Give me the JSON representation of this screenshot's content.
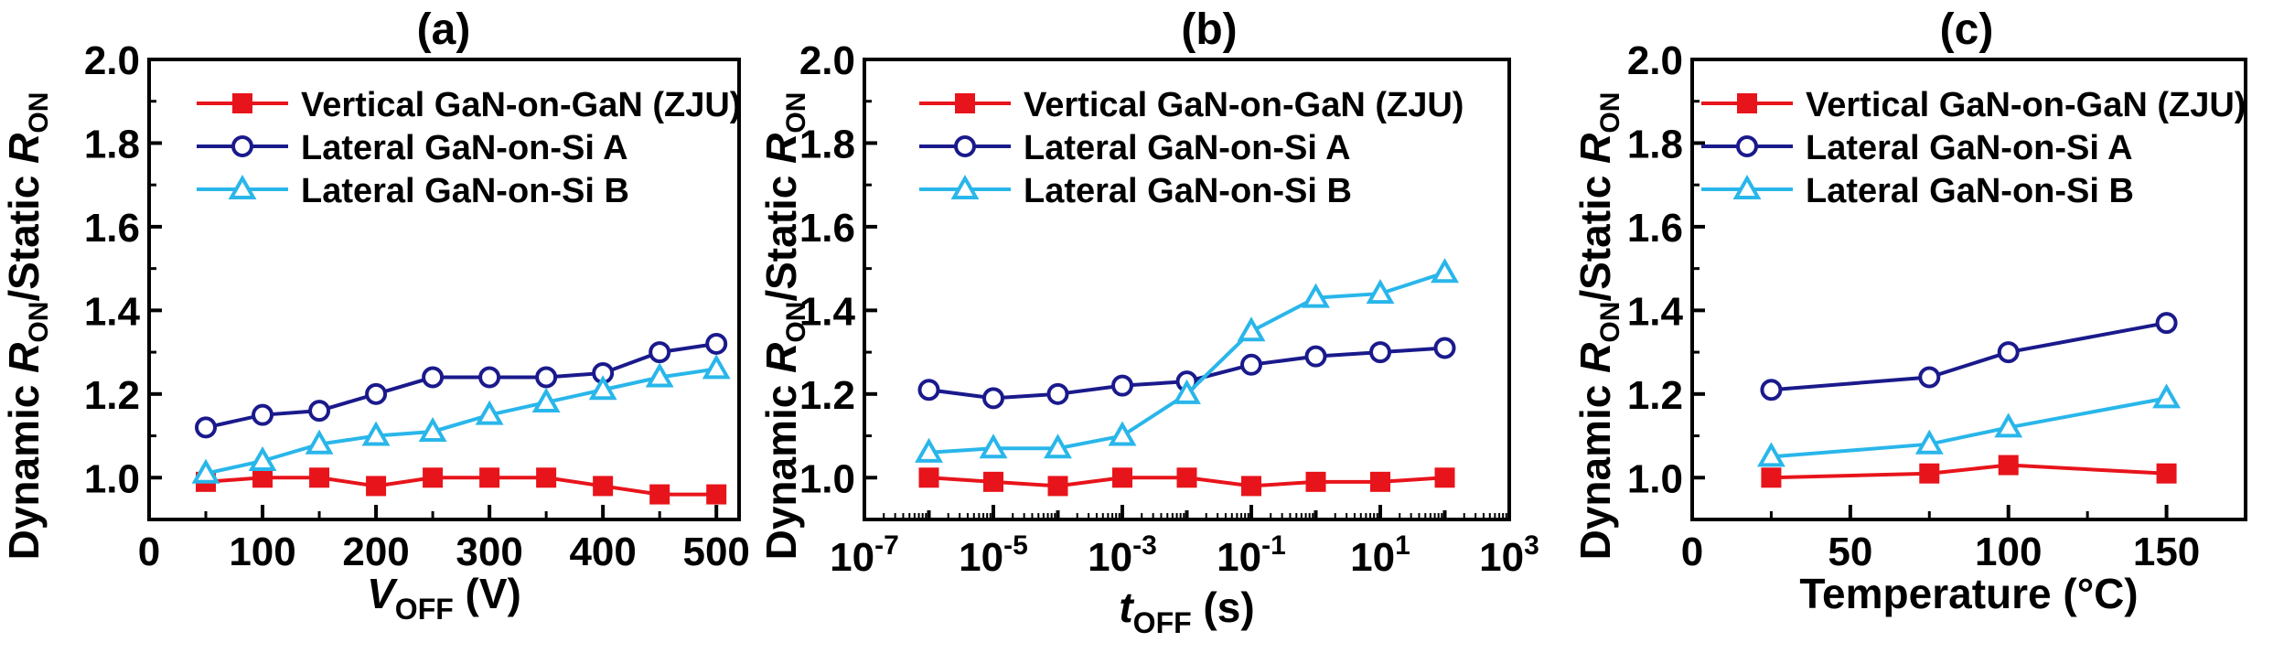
{
  "colors": {
    "vertical": "#e8141b",
    "lateral_a": "#1a1a8c",
    "lateral_b": "#29b6ea",
    "axis": "#000000"
  },
  "legend_items": [
    {
      "label": "Vertical GaN-on-GaN (ZJU)",
      "marker": "square"
    },
    {
      "label": "Lateral GaN-on-Si A",
      "marker": "circle"
    },
    {
      "label": "Lateral GaN-on-Si B",
      "marker": "triangle"
    }
  ],
  "chart_data": [
    {
      "panel": "(a)",
      "type": "line",
      "title": "(a)",
      "ylabel": {
        "pre": "Dynamic ",
        "sym": "R",
        "sub": "ON",
        "mid": "/Static ",
        "sym2": "R",
        "sub2": "ON"
      },
      "xlabel": {
        "sym": "V",
        "sub": "OFF",
        "post": " (V)"
      },
      "xscale": "linear",
      "xlim": [
        0,
        520
      ],
      "ylim": [
        0.9,
        2.0
      ],
      "xticks": [
        0,
        100,
        200,
        300,
        400,
        500
      ],
      "xtick_labels": [
        "0",
        "100",
        "200",
        "300",
        "400",
        "500"
      ],
      "yticks": [
        1.0,
        1.2,
        1.4,
        1.6,
        1.8,
        2.0
      ],
      "ytick_labels": [
        "1.0",
        "1.2",
        "1.4",
        "1.6",
        "1.8",
        "2.0"
      ],
      "legend": "top-left",
      "series": [
        {
          "name": "Vertical GaN-on-GaN (ZJU)",
          "x": [
            50,
            100,
            150,
            200,
            250,
            300,
            350,
            400,
            450,
            500
          ],
          "y": [
            0.99,
            1.0,
            1.0,
            0.98,
            1.0,
            1.0,
            1.0,
            0.98,
            0.96,
            0.96
          ]
        },
        {
          "name": "Lateral GaN-on-Si A",
          "x": [
            50,
            100,
            150,
            200,
            250,
            300,
            350,
            400,
            450,
            500
          ],
          "y": [
            1.12,
            1.15,
            1.16,
            1.2,
            1.24,
            1.24,
            1.24,
            1.25,
            1.3,
            1.32
          ]
        },
        {
          "name": "Lateral GaN-on-Si B",
          "x": [
            50,
            100,
            150,
            200,
            250,
            300,
            350,
            400,
            450,
            500
          ],
          "y": [
            1.01,
            1.04,
            1.08,
            1.1,
            1.11,
            1.15,
            1.18,
            1.21,
            1.24,
            1.26
          ]
        }
      ]
    },
    {
      "panel": "(b)",
      "type": "line",
      "title": "(b)",
      "ylabel": {
        "pre": "Dynamic ",
        "sym": "R",
        "sub": "ON",
        "mid": "/Static ",
        "sym2": "R",
        "sub2": "ON"
      },
      "xlabel": {
        "sym": "t",
        "sub": "OFF",
        "post": " (s)"
      },
      "xscale": "log",
      "xlim": [
        1e-07,
        1000
      ],
      "ylim": [
        0.9,
        2.0
      ],
      "xticks": [
        -7,
        -5,
        -3,
        -1,
        1,
        3
      ],
      "xtick_labels": [
        "10-7",
        "10-5",
        "10-3",
        "10-1",
        "101",
        "103"
      ],
      "yticks": [
        1.0,
        1.2,
        1.4,
        1.6,
        1.8,
        2.0
      ],
      "ytick_labels": [
        "1.0",
        "1.2",
        "1.4",
        "1.6",
        "1.8",
        "2.0"
      ],
      "legend": "top-left",
      "series": [
        {
          "name": "Vertical GaN-on-GaN (ZJU)",
          "x": [
            1e-06,
            1e-05,
            0.0001,
            0.001,
            0.01,
            0.1,
            1,
            10,
            100
          ],
          "y": [
            1.0,
            0.99,
            0.98,
            1.0,
            1.0,
            0.98,
            0.99,
            0.99,
            1.0
          ]
        },
        {
          "name": "Lateral GaN-on-Si A",
          "x": [
            1e-06,
            1e-05,
            0.0001,
            0.001,
            0.01,
            0.1,
            1,
            10,
            100
          ],
          "y": [
            1.21,
            1.19,
            1.2,
            1.22,
            1.23,
            1.27,
            1.29,
            1.3,
            1.31
          ]
        },
        {
          "name": "Lateral GaN-on-Si B",
          "x": [
            1e-06,
            1e-05,
            0.0001,
            0.001,
            0.01,
            0.1,
            1,
            10,
            100
          ],
          "y": [
            1.06,
            1.07,
            1.07,
            1.1,
            1.2,
            1.35,
            1.43,
            1.44,
            1.49
          ]
        }
      ]
    },
    {
      "panel": "(c)",
      "type": "line",
      "title": "(c)",
      "ylabel": {
        "pre": "Dynamic ",
        "sym": "R",
        "sub": "ON",
        "mid": "/Static ",
        "sym2": "R",
        "sub2": "ON"
      },
      "xlabel": {
        "sym": "",
        "sub": "",
        "post": "Temperature (°C)"
      },
      "xscale": "linear",
      "xlim": [
        0,
        175
      ],
      "ylim": [
        0.9,
        2.0
      ],
      "xticks": [
        0,
        50,
        100,
        150
      ],
      "xtick_labels": [
        "0",
        "50",
        "100",
        "150"
      ],
      "yticks": [
        1.0,
        1.2,
        1.4,
        1.6,
        1.8,
        2.0
      ],
      "ytick_labels": [
        "1.0",
        "1.2",
        "1.4",
        "1.6",
        "1.8",
        "2.0"
      ],
      "legend": "top-left",
      "series": [
        {
          "name": "Vertical GaN-on-GaN (ZJU)",
          "x": [
            25,
            75,
            100,
            150
          ],
          "y": [
            1.0,
            1.01,
            1.03,
            1.01
          ]
        },
        {
          "name": "Lateral GaN-on-Si A",
          "x": [
            25,
            75,
            100,
            150
          ],
          "y": [
            1.21,
            1.24,
            1.3,
            1.37
          ]
        },
        {
          "name": "Lateral GaN-on-Si B",
          "x": [
            25,
            75,
            100,
            150
          ],
          "y": [
            1.05,
            1.08,
            1.12,
            1.19
          ]
        }
      ]
    }
  ]
}
